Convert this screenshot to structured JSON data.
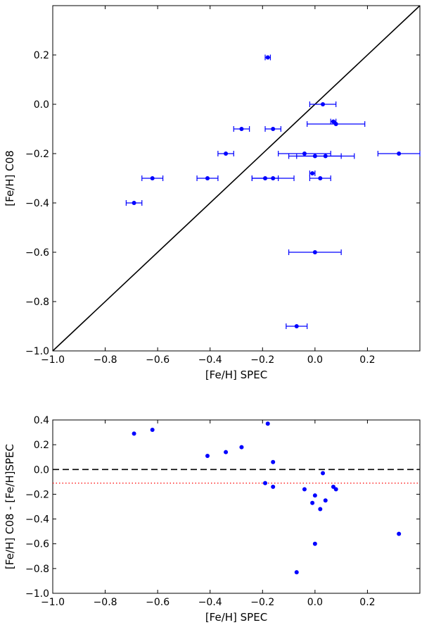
{
  "chart_data": [
    {
      "type": "scatter",
      "name": "top",
      "xlabel": "[Fe/H] SPEC",
      "ylabel": "[Fe/H] C08",
      "xlim": [
        -1.0,
        0.4
      ],
      "ylim": [
        -1.0,
        0.4
      ],
      "xticks": [
        -1.0,
        -0.8,
        -0.6,
        -0.4,
        -0.2,
        0.0,
        0.2
      ],
      "yticks": [
        -1.0,
        -0.8,
        -0.6,
        -0.4,
        -0.2,
        0.0,
        0.2
      ],
      "xtick_labels": [
        "−1.0",
        "−0.8",
        "−0.6",
        "−0.4",
        "−0.2",
        "0.0",
        "0.2"
      ],
      "ytick_labels": [
        "−1.0",
        "−0.8",
        "−0.6",
        "−0.4",
        "−0.2",
        "0.0",
        "0.2"
      ],
      "reference_line": {
        "from": [
          -1.0,
          -1.0
        ],
        "to": [
          0.4,
          0.4
        ],
        "color": "#000000"
      },
      "point_color": "#0000ff",
      "points": [
        {
          "x": -0.18,
          "y": 0.19,
          "xerr": 0.01
        },
        {
          "x": 0.03,
          "y": 0.0,
          "xerr": 0.05
        },
        {
          "x": -0.28,
          "y": -0.1,
          "xerr": 0.03
        },
        {
          "x": -0.16,
          "y": -0.1,
          "xerr": 0.03
        },
        {
          "x": 0.07,
          "y": -0.07,
          "xerr": 0.01
        },
        {
          "x": 0.08,
          "y": -0.08,
          "xerr": 0.11
        },
        {
          "x": -0.34,
          "y": -0.2,
          "xerr": 0.03
        },
        {
          "x": -0.04,
          "y": -0.2,
          "xerr": 0.1
        },
        {
          "x": 0.0,
          "y": -0.21,
          "xerr": 0.1
        },
        {
          "x": 0.04,
          "y": -0.21,
          "xerr": 0.11
        },
        {
          "x": 0.32,
          "y": -0.2,
          "xerr": 0.08
        },
        {
          "x": -0.01,
          "y": -0.28,
          "xerr": 0.01
        },
        {
          "x": -0.62,
          "y": -0.3,
          "xerr": 0.04
        },
        {
          "x": -0.41,
          "y": -0.3,
          "xerr": 0.04
        },
        {
          "x": -0.19,
          "y": -0.3,
          "xerr": 0.05
        },
        {
          "x": -0.16,
          "y": -0.3,
          "xerr": 0.08
        },
        {
          "x": 0.02,
          "y": -0.3,
          "xerr": 0.04
        },
        {
          "x": -0.69,
          "y": -0.4,
          "xerr": 0.03
        },
        {
          "x": 0.0,
          "y": -0.6,
          "xerr": 0.1
        },
        {
          "x": -0.07,
          "y": -0.9,
          "xerr": 0.04
        }
      ]
    },
    {
      "type": "scatter",
      "name": "bottom",
      "xlabel": "[Fe/H] SPEC",
      "ylabel": "[Fe/H] C08 - [Fe/H]SPEC",
      "xlim": [
        -1.0,
        0.4
      ],
      "ylim": [
        -1.0,
        0.4
      ],
      "xticks": [
        -1.0,
        -0.8,
        -0.6,
        -0.4,
        -0.2,
        0.0,
        0.2
      ],
      "yticks": [
        -1.0,
        -0.8,
        -0.6,
        -0.4,
        -0.2,
        0.0,
        0.2,
        0.4
      ],
      "xtick_labels": [
        "−1.0",
        "−0.8",
        "−0.6",
        "−0.4",
        "−0.2",
        "0.0",
        "0.2"
      ],
      "ytick_labels": [
        "−1.0",
        "−0.8",
        "−0.6",
        "−0.4",
        "−0.2",
        "0.0",
        "0.2",
        "0.4"
      ],
      "hlines": [
        {
          "y": 0.0,
          "style": "dashed",
          "color": "#000000"
        },
        {
          "y": -0.11,
          "style": "dotted",
          "color": "#ff0000"
        }
      ],
      "point_color": "#0000ff",
      "points": [
        {
          "x": -0.69,
          "y": 0.29
        },
        {
          "x": -0.62,
          "y": 0.32
        },
        {
          "x": -0.41,
          "y": 0.11
        },
        {
          "x": -0.34,
          "y": 0.14
        },
        {
          "x": -0.28,
          "y": 0.18
        },
        {
          "x": -0.18,
          "y": 0.37
        },
        {
          "x": -0.16,
          "y": 0.06
        },
        {
          "x": -0.19,
          "y": -0.11
        },
        {
          "x": -0.16,
          "y": -0.14
        },
        {
          "x": -0.04,
          "y": -0.16
        },
        {
          "x": 0.03,
          "y": -0.03
        },
        {
          "x": -0.01,
          "y": -0.27
        },
        {
          "x": 0.0,
          "y": -0.21
        },
        {
          "x": 0.02,
          "y": -0.32
        },
        {
          "x": 0.04,
          "y": -0.25
        },
        {
          "x": 0.07,
          "y": -0.14
        },
        {
          "x": 0.08,
          "y": -0.16
        },
        {
          "x": 0.0,
          "y": -0.6
        },
        {
          "x": -0.07,
          "y": -0.83
        },
        {
          "x": 0.32,
          "y": -0.52
        }
      ]
    }
  ]
}
